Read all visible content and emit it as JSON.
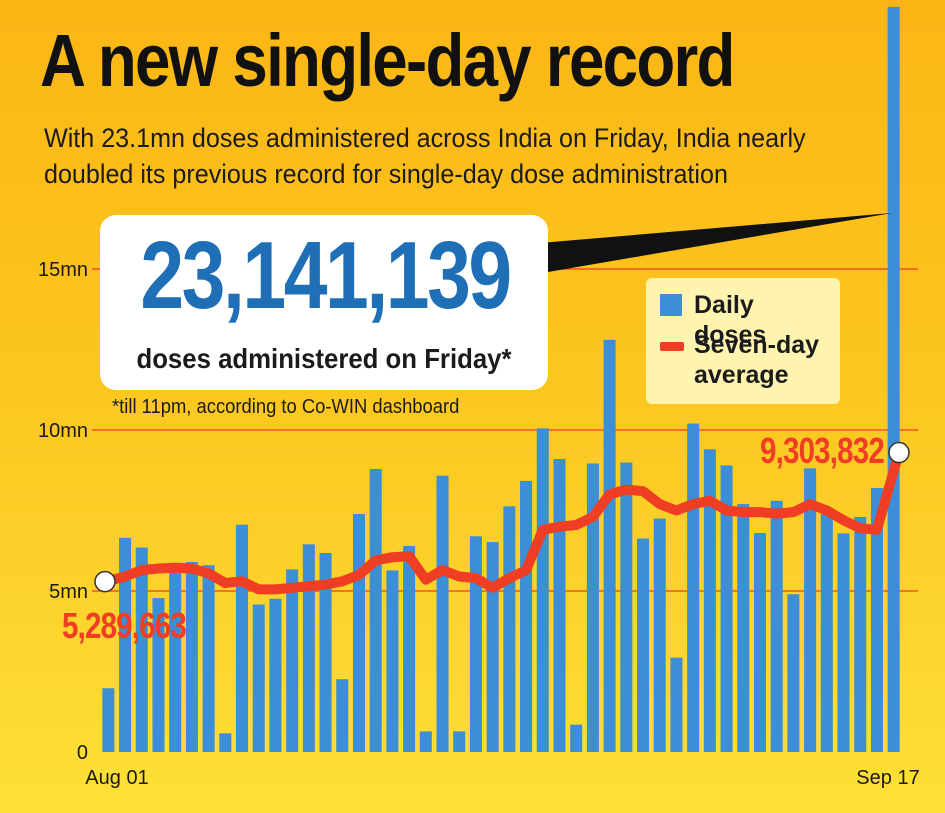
{
  "title": "A new single-day record",
  "subtitle": "With 23.1mn doses administered across India on Friday, India nearly doubled its previous record for single-day dose administration",
  "callout": {
    "value": "23,141,139",
    "caption": "doses administered on Friday*",
    "footnote": "*till 11pm, according to Co-WIN dashboard"
  },
  "legend": {
    "daily": "Daily doses",
    "avg": "Seven-day average"
  },
  "annotations": {
    "start_value": "5,289,663",
    "end_value": "9,303,832"
  },
  "colors": {
    "bar": "#3c8ed6",
    "line": "#ef3e23",
    "grid": "#ef3e23",
    "callout_number": "#1f6fb6"
  },
  "chart_data": {
    "type": "bar",
    "x_start_label": "Aug 01",
    "x_end_label": "Sep 17",
    "y_ticks": [
      {
        "value": 0,
        "label": "0"
      },
      {
        "value": 5,
        "label": "5mn"
      },
      {
        "value": 10,
        "label": "10mn"
      },
      {
        "value": 15,
        "label": "15mn"
      }
    ],
    "ylim": [
      0,
      22.5
    ],
    "grid": true,
    "series": [
      {
        "name": "Daily doses",
        "values": [
          1.98,
          6.65,
          6.35,
          4.78,
          5.73,
          5.9,
          5.8,
          0.58,
          7.06,
          4.58,
          4.76,
          5.67,
          6.45,
          6.18,
          2.26,
          7.39,
          8.79,
          5.64,
          6.4,
          0.64,
          8.58,
          0.64,
          6.7,
          6.52,
          7.63,
          8.42,
          10.05,
          9.1,
          0.85,
          8.96,
          12.8,
          8.99,
          6.63,
          7.25,
          2.93,
          10.2,
          9.4,
          8.9,
          7.7,
          6.8,
          7.8,
          4.9,
          8.81,
          7.4,
          6.79,
          7.3,
          8.2,
          23.14
        ]
      },
      {
        "name": "Seven-day average",
        "values": [
          5.29,
          5.45,
          5.65,
          5.7,
          5.72,
          5.7,
          5.55,
          5.25,
          5.3,
          5.05,
          5.05,
          5.1,
          5.15,
          5.2,
          5.3,
          5.5,
          5.95,
          6.05,
          6.08,
          5.35,
          5.65,
          5.45,
          5.4,
          5.1,
          5.4,
          5.65,
          6.9,
          7.0,
          7.05,
          7.3,
          8.0,
          8.15,
          8.1,
          7.7,
          7.5,
          7.7,
          7.8,
          7.5,
          7.45,
          7.45,
          7.4,
          7.45,
          7.7,
          7.5,
          7.2,
          6.95,
          6.9,
          9.3
        ]
      }
    ]
  }
}
